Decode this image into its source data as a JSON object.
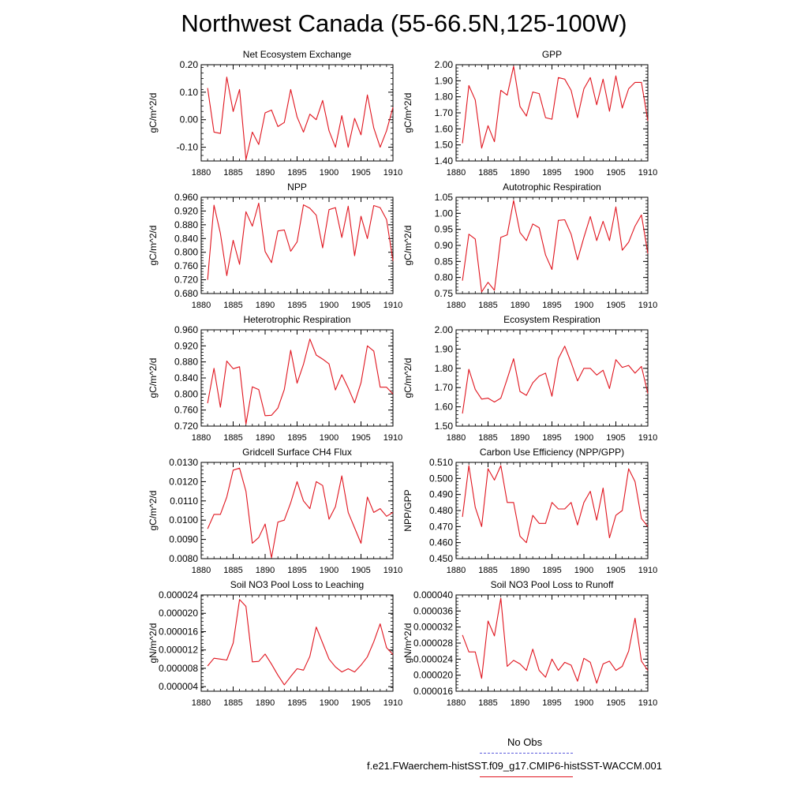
{
  "title": "Northwest Canada (55-66.5N,125-100W)",
  "legend": [
    {
      "label": "No Obs",
      "color": "#5a5adc",
      "style": "dashed"
    },
    {
      "label": "f.e21.FWaerchem-histSST.f09_g17.CMIP6-histSST-WACCM.001",
      "color": "#e0141e",
      "style": "solid"
    }
  ],
  "chart_data": [
    {
      "type": "line",
      "title": "Net Ecosystem Exchange",
      "ylabel": "gC/m^2/d",
      "xlim": [
        1880,
        1910
      ],
      "ylim": [
        -0.15,
        0.2
      ],
      "yticks": [
        -0.1,
        0.0,
        0.1,
        0.2
      ],
      "yticklabels": [
        "-0.10",
        "0.00",
        "0.10",
        "0.20"
      ],
      "yminor": 0.02,
      "x": [
        1881,
        1882,
        1883,
        1884,
        1885,
        1886,
        1887,
        1888,
        1889,
        1890,
        1891,
        1892,
        1893,
        1894,
        1895,
        1896,
        1897,
        1898,
        1899,
        1900,
        1901,
        1902,
        1903,
        1904,
        1905,
        1906,
        1907,
        1908,
        1909,
        1910
      ],
      "series": [
        {
          "color": "#e0141e",
          "values": [
            0.115,
            -0.045,
            -0.05,
            0.155,
            0.03,
            0.11,
            -0.145,
            -0.045,
            -0.09,
            0.025,
            0.035,
            -0.025,
            -0.01,
            0.11,
            0.01,
            -0.045,
            0.02,
            0.0,
            0.07,
            -0.04,
            -0.1,
            0.015,
            -0.1,
            0.005,
            -0.055,
            0.09,
            -0.03,
            -0.1,
            -0.04,
            0.045
          ]
        }
      ]
    },
    {
      "type": "line",
      "title": "GPP",
      "ylabel": "gC/m^2/d",
      "xlim": [
        1880,
        1910
      ],
      "ylim": [
        1.4,
        2.0
      ],
      "yticks": [
        1.4,
        1.5,
        1.6,
        1.7,
        1.8,
        1.9,
        2.0
      ],
      "yticklabels": [
        "1.40",
        "1.50",
        "1.60",
        "1.70",
        "1.80",
        "1.90",
        "2.00"
      ],
      "yminor": 0.02,
      "x": [
        1881,
        1882,
        1883,
        1884,
        1885,
        1886,
        1887,
        1888,
        1889,
        1890,
        1891,
        1892,
        1893,
        1894,
        1895,
        1896,
        1897,
        1898,
        1899,
        1900,
        1901,
        1902,
        1903,
        1904,
        1905,
        1906,
        1907,
        1908,
        1909,
        1910
      ],
      "series": [
        {
          "color": "#e0141e",
          "values": [
            1.51,
            1.87,
            1.78,
            1.48,
            1.62,
            1.52,
            1.84,
            1.81,
            1.99,
            1.74,
            1.68,
            1.83,
            1.82,
            1.67,
            1.66,
            1.92,
            1.91,
            1.84,
            1.67,
            1.85,
            1.92,
            1.75,
            1.91,
            1.71,
            1.93,
            1.73,
            1.85,
            1.89,
            1.89,
            1.65
          ]
        }
      ]
    },
    {
      "type": "line",
      "title": "NPP",
      "ylabel": "gC/m^2/d",
      "xlim": [
        1880,
        1910
      ],
      "ylim": [
        0.68,
        0.96
      ],
      "yticks": [
        0.68,
        0.72,
        0.76,
        0.8,
        0.84,
        0.88,
        0.92,
        0.96
      ],
      "yticklabels": [
        "0.680",
        "0.720",
        "0.760",
        "0.800",
        "0.840",
        "0.880",
        "0.920",
        "0.960"
      ],
      "yminor": 0.008,
      "x": [
        1881,
        1882,
        1883,
        1884,
        1885,
        1886,
        1887,
        1888,
        1889,
        1890,
        1891,
        1892,
        1893,
        1894,
        1895,
        1896,
        1897,
        1898,
        1899,
        1900,
        1901,
        1902,
        1903,
        1904,
        1905,
        1906,
        1907,
        1908,
        1909,
        1910
      ],
      "series": [
        {
          "color": "#e0141e",
          "values": [
            0.72,
            0.937,
            0.855,
            0.732,
            0.835,
            0.765,
            0.918,
            0.876,
            0.943,
            0.802,
            0.77,
            0.862,
            0.865,
            0.803,
            0.83,
            0.938,
            0.928,
            0.908,
            0.813,
            0.924,
            0.93,
            0.843,
            0.934,
            0.79,
            0.905,
            0.84,
            0.936,
            0.93,
            0.895,
            0.775
          ]
        }
      ]
    },
    {
      "type": "line",
      "title": "Autotrophic Respiration",
      "ylabel": "gC/m^2/d",
      "xlim": [
        1880,
        1910
      ],
      "ylim": [
        0.75,
        1.05
      ],
      "yticks": [
        0.75,
        0.8,
        0.85,
        0.9,
        0.95,
        1.0,
        1.05
      ],
      "yticklabels": [
        "0.75",
        "0.80",
        "0.85",
        "0.90",
        "0.95",
        "1.00",
        "1.05"
      ],
      "yminor": 0.01,
      "x": [
        1881,
        1882,
        1883,
        1884,
        1885,
        1886,
        1887,
        1888,
        1889,
        1890,
        1891,
        1892,
        1893,
        1894,
        1895,
        1896,
        1897,
        1898,
        1899,
        1900,
        1901,
        1902,
        1903,
        1904,
        1905,
        1906,
        1907,
        1908,
        1909,
        1910
      ],
      "series": [
        {
          "color": "#e0141e",
          "values": [
            0.79,
            0.935,
            0.92,
            0.755,
            0.785,
            0.76,
            0.925,
            0.933,
            1.04,
            0.94,
            0.915,
            0.967,
            0.955,
            0.87,
            0.825,
            0.978,
            0.98,
            0.935,
            0.855,
            0.925,
            0.99,
            0.915,
            0.975,
            0.915,
            1.02,
            0.885,
            0.91,
            0.96,
            0.995,
            0.875
          ]
        }
      ]
    },
    {
      "type": "line",
      "title": "Heterotrophic Respiration",
      "ylabel": "gC/m^2/d",
      "xlim": [
        1880,
        1910
      ],
      "ylim": [
        0.72,
        0.96
      ],
      "yticks": [
        0.72,
        0.76,
        0.8,
        0.84,
        0.88,
        0.92,
        0.96
      ],
      "yticklabels": [
        "0.720",
        "0.760",
        "0.800",
        "0.840",
        "0.880",
        "0.920",
        "0.960"
      ],
      "yminor": 0.008,
      "x": [
        1881,
        1882,
        1883,
        1884,
        1885,
        1886,
        1887,
        1888,
        1889,
        1890,
        1891,
        1892,
        1893,
        1894,
        1895,
        1896,
        1897,
        1898,
        1899,
        1900,
        1901,
        1902,
        1903,
        1904,
        1905,
        1906,
        1907,
        1908,
        1909,
        1910
      ],
      "series": [
        {
          "color": "#e0141e",
          "values": [
            0.777,
            0.864,
            0.767,
            0.882,
            0.863,
            0.868,
            0.725,
            0.818,
            0.811,
            0.746,
            0.747,
            0.765,
            0.811,
            0.909,
            0.827,
            0.874,
            0.937,
            0.897,
            0.887,
            0.875,
            0.81,
            0.848,
            0.815,
            0.778,
            0.828,
            0.92,
            0.907,
            0.817,
            0.817,
            0.8
          ]
        }
      ]
    },
    {
      "type": "line",
      "title": "Ecosystem Respiration",
      "ylabel": "gC/m^2/d",
      "xlim": [
        1880,
        1910
      ],
      "ylim": [
        1.5,
        2.0
      ],
      "yticks": [
        1.5,
        1.6,
        1.7,
        1.8,
        1.9,
        2.0
      ],
      "yticklabels": [
        "1.50",
        "1.60",
        "1.70",
        "1.80",
        "1.90",
        "2.00"
      ],
      "yminor": 0.02,
      "x": [
        1881,
        1882,
        1883,
        1884,
        1885,
        1886,
        1887,
        1888,
        1889,
        1890,
        1891,
        1892,
        1893,
        1894,
        1895,
        1896,
        1897,
        1898,
        1899,
        1900,
        1901,
        1902,
        1903,
        1904,
        1905,
        1906,
        1907,
        1908,
        1909,
        1910
      ],
      "series": [
        {
          "color": "#e0141e",
          "values": [
            1.565,
            1.795,
            1.69,
            1.64,
            1.645,
            1.625,
            1.645,
            1.745,
            1.85,
            1.68,
            1.66,
            1.725,
            1.76,
            1.775,
            1.655,
            1.85,
            1.915,
            1.83,
            1.735,
            1.8,
            1.8,
            1.765,
            1.79,
            1.695,
            1.845,
            1.805,
            1.815,
            1.775,
            1.81,
            1.67
          ]
        }
      ]
    },
    {
      "type": "line",
      "title": "Gridcell Surface CH4 Flux",
      "ylabel": "gC/m^2/d",
      "xlim": [
        1880,
        1910
      ],
      "ylim": [
        0.008,
        0.013
      ],
      "yticks": [
        0.008,
        0.009,
        0.01,
        0.011,
        0.012,
        0.013
      ],
      "yticklabels": [
        "0.0080",
        "0.0090",
        "0.0100",
        "0.0110",
        "0.0120",
        "0.0130"
      ],
      "yminor": 0.0002,
      "x": [
        1881,
        1882,
        1883,
        1884,
        1885,
        1886,
        1887,
        1888,
        1889,
        1890,
        1891,
        1892,
        1893,
        1894,
        1895,
        1896,
        1897,
        1898,
        1899,
        1900,
        1901,
        1902,
        1903,
        1904,
        1905,
        1906,
        1907,
        1908,
        1909,
        1910
      ],
      "series": [
        {
          "color": "#e0141e",
          "values": [
            0.00955,
            0.0103,
            0.0103,
            0.0112,
            0.0126,
            0.0127,
            0.0115,
            0.0088,
            0.0091,
            0.0098,
            0.00805,
            0.0099,
            0.01,
            0.0109,
            0.012,
            0.011,
            0.0106,
            0.012,
            0.0118,
            0.01005,
            0.0107,
            0.0123,
            0.0104,
            0.0096,
            0.0088,
            0.0112,
            0.0104,
            0.0106,
            0.0102,
            0.0104
          ]
        }
      ]
    },
    {
      "type": "line",
      "title": "Carbon Use Efficiency (NPP/GPP)",
      "ylabel": "NPP/GPP",
      "xlim": [
        1880,
        1910
      ],
      "ylim": [
        0.45,
        0.51
      ],
      "yticks": [
        0.45,
        0.46,
        0.47,
        0.48,
        0.49,
        0.5,
        0.51
      ],
      "yticklabels": [
        "0.450",
        "0.460",
        "0.470",
        "0.480",
        "0.490",
        "0.500",
        "0.510"
      ],
      "yminor": 0.002,
      "x": [
        1881,
        1882,
        1883,
        1884,
        1885,
        1886,
        1887,
        1888,
        1889,
        1890,
        1891,
        1892,
        1893,
        1894,
        1895,
        1896,
        1897,
        1898,
        1899,
        1900,
        1901,
        1902,
        1903,
        1904,
        1905,
        1906,
        1907,
        1908,
        1909,
        1910
      ],
      "series": [
        {
          "color": "#e0141e",
          "values": [
            0.476,
            0.508,
            0.482,
            0.47,
            0.506,
            0.499,
            0.508,
            0.485,
            0.485,
            0.464,
            0.46,
            0.477,
            0.472,
            0.472,
            0.485,
            0.481,
            0.481,
            0.485,
            0.471,
            0.485,
            0.492,
            0.474,
            0.494,
            0.463,
            0.477,
            0.48,
            0.506,
            0.498,
            0.475,
            0.47
          ]
        }
      ]
    },
    {
      "type": "line",
      "title": "Soil NO3 Pool Loss to Leaching",
      "ylabel": "gN/m^2/d",
      "xlim": [
        1880,
        1910
      ],
      "ylim": [
        3e-06,
        2.4e-05
      ],
      "yticks": [
        4e-06,
        8e-06,
        1.2e-05,
        1.6e-05,
        2e-05,
        2.4e-05
      ],
      "yticklabels": [
        "0.000004",
        "0.000008",
        "0.000012",
        "0.000016",
        "0.000020",
        "0.000024"
      ],
      "yminor": 8e-07,
      "x": [
        1881,
        1882,
        1883,
        1884,
        1885,
        1886,
        1887,
        1888,
        1889,
        1890,
        1891,
        1892,
        1893,
        1894,
        1895,
        1896,
        1897,
        1898,
        1899,
        1900,
        1901,
        1902,
        1903,
        1904,
        1905,
        1906,
        1907,
        1908,
        1909,
        1910
      ],
      "series": [
        {
          "color": "#e0141e",
          "values": [
            8.5e-06,
            1.02e-05,
            1e-05,
            9.8e-06,
            1.35e-05,
            2.3e-05,
            2.15e-05,
            9.4e-06,
            9.5e-06,
            1.11e-05,
            8.9e-06,
            6.5e-06,
            4.4e-06,
            6.2e-06,
            7.9e-06,
            7.6e-06,
            1.06e-05,
            1.7e-05,
            1.35e-05,
            1e-05,
            8.3e-06,
            7.2e-06,
            7.9e-06,
            7.2e-06,
            8.7e-06,
            1.05e-05,
            1.38e-05,
            1.77e-05,
            1.25e-05,
            1.1e-05
          ]
        }
      ]
    },
    {
      "type": "line",
      "title": "Soil NO3 Pool Loss to Runoff",
      "ylabel": "gN/m^2/d",
      "xlim": [
        1880,
        1910
      ],
      "ylim": [
        1.6e-05,
        4e-05
      ],
      "yticks": [
        1.6e-05,
        2e-05,
        2.4e-05,
        2.8e-05,
        3.2e-05,
        3.6e-05,
        4e-05
      ],
      "yticklabels": [
        "0.000016",
        "0.000020",
        "0.000024",
        "0.000028",
        "0.000032",
        "0.000036",
        "0.000040"
      ],
      "yminor": 8e-07,
      "x": [
        1881,
        1882,
        1883,
        1884,
        1885,
        1886,
        1887,
        1888,
        1889,
        1890,
        1891,
        1892,
        1893,
        1894,
        1895,
        1896,
        1897,
        1898,
        1899,
        1900,
        1901,
        1902,
        1903,
        1904,
        1905,
        1906,
        1907,
        1908,
        1909,
        1910
      ],
      "series": [
        {
          "color": "#e0141e",
          "values": [
            3e-05,
            2.58e-05,
            2.58e-05,
            1.92e-05,
            3.35e-05,
            2.98e-05,
            3.92e-05,
            2.22e-05,
            2.37e-05,
            2.28e-05,
            2.12e-05,
            2.65e-05,
            2.12e-05,
            1.95e-05,
            2.4e-05,
            2.12e-05,
            2.32e-05,
            2.25e-05,
            1.85e-05,
            2.42e-05,
            2.32e-05,
            1.8e-05,
            2.28e-05,
            2.35e-05,
            2.12e-05,
            2.22e-05,
            2.6e-05,
            3.42e-05,
            2.35e-05,
            2.12e-05
          ]
        }
      ]
    }
  ]
}
